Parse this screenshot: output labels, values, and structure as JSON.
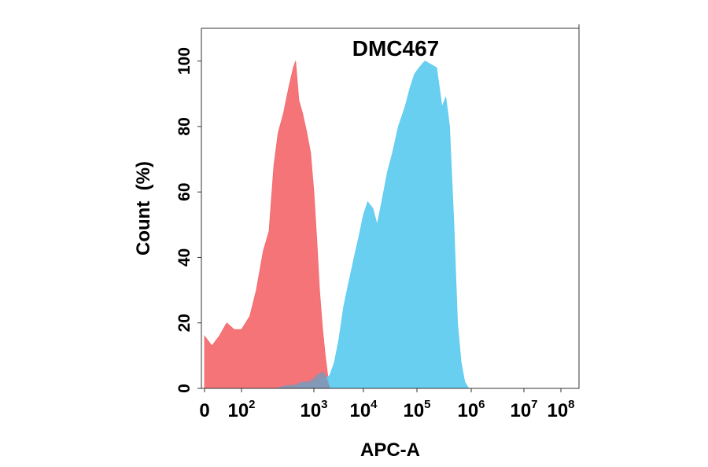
{
  "chart_data": {
    "type": "area",
    "title": "DMC467",
    "xlabel": "APC-A",
    "ylabel": "Count  (%)",
    "x_scale": "biexponential",
    "x_ticks": [
      {
        "value": 0,
        "base": "0",
        "exp": ""
      },
      {
        "value": 100,
        "base": "10",
        "exp": "2"
      },
      {
        "value": 1000,
        "base": "10",
        "exp": "3"
      },
      {
        "value": 10000,
        "base": "10",
        "exp": "4"
      },
      {
        "value": 100000,
        "base": "10",
        "exp": "5"
      },
      {
        "value": 1000000,
        "base": "10",
        "exp": "6"
      },
      {
        "value": 10000000,
        "base": "10",
        "exp": "7"
      },
      {
        "value": 100000000,
        "base": "10",
        "exp": "8"
      }
    ],
    "y_ticks": [
      "0",
      "20",
      "40",
      "60",
      "80",
      "100"
    ],
    "ylim": [
      0,
      110
    ],
    "grid": false,
    "series": [
      {
        "color": "#f4686c",
        "points": [
          [
            0,
            16
          ],
          [
            20,
            13
          ],
          [
            40,
            16
          ],
          [
            60,
            20
          ],
          [
            80,
            18
          ],
          [
            100,
            18
          ],
          [
            130,
            22
          ],
          [
            160,
            30
          ],
          [
            200,
            42
          ],
          [
            240,
            48
          ],
          [
            280,
            68
          ],
          [
            320,
            78
          ],
          [
            380,
            84
          ],
          [
            450,
            92
          ],
          [
            520,
            98
          ],
          [
            560,
            100
          ],
          [
            620,
            88
          ],
          [
            700,
            84
          ],
          [
            800,
            78
          ],
          [
            900,
            72
          ],
          [
            1000,
            60
          ],
          [
            1150,
            45
          ],
          [
            1300,
            30
          ],
          [
            1500,
            18
          ],
          [
            1700,
            10
          ],
          [
            1900,
            4
          ],
          [
            2100,
            0
          ]
        ]
      },
      {
        "color": "#5ccbf0",
        "points": [
          [
            300,
            0
          ],
          [
            500,
            0
          ],
          [
            700,
            1
          ],
          [
            1000,
            1.5
          ],
          [
            1300,
            3
          ],
          [
            1700,
            3
          ],
          [
            2100,
            4
          ],
          [
            2600,
            8
          ],
          [
            3200,
            15
          ],
          [
            4000,
            25
          ],
          [
            5000,
            32
          ],
          [
            6500,
            40
          ],
          [
            8000,
            46
          ],
          [
            10000,
            53
          ],
          [
            12000,
            57
          ],
          [
            15000,
            55
          ],
          [
            18000,
            50
          ],
          [
            22000,
            57
          ],
          [
            28000,
            66
          ],
          [
            35000,
            72
          ],
          [
            45000,
            80
          ],
          [
            60000,
            86
          ],
          [
            75000,
            92
          ],
          [
            90000,
            96
          ],
          [
            110000,
            98
          ],
          [
            140000,
            100
          ],
          [
            180000,
            99
          ],
          [
            230000,
            98
          ],
          [
            290000,
            86
          ],
          [
            340000,
            89
          ],
          [
            400000,
            80
          ],
          [
            480000,
            50
          ],
          [
            560000,
            20
          ],
          [
            650000,
            8
          ],
          [
            760000,
            2
          ],
          [
            900000,
            0
          ]
        ]
      },
      {
        "color": "#8596b4",
        "points": [
          [
            300,
            0
          ],
          [
            400,
            0.8
          ],
          [
            550,
            1
          ],
          [
            700,
            2
          ],
          [
            850,
            2
          ],
          [
            1000,
            3
          ],
          [
            1150,
            4
          ],
          [
            1300,
            4.5
          ],
          [
            1500,
            5
          ],
          [
            1700,
            4
          ],
          [
            1900,
            2
          ],
          [
            2100,
            0
          ]
        ]
      }
    ]
  }
}
